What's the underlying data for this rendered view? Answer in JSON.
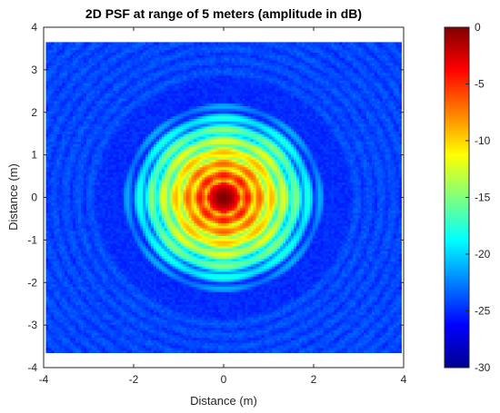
{
  "chart_data": {
    "type": "heatmap",
    "title": "2D PSF at range of 5 meters (amplitude in dB)",
    "xlabel": "Distance (m)",
    "ylabel": "Distance (m)",
    "xlim": [
      -4,
      4
    ],
    "ylim": [
      -4,
      4
    ],
    "data_extent": {
      "x": [
        -3.95,
        3.95
      ],
      "y": [
        -3.65,
        3.65
      ]
    },
    "x_ticks": [
      -4,
      -2,
      0,
      2,
      4
    ],
    "x_tick_labels": [
      "-4",
      "-2",
      "0",
      "2",
      "4"
    ],
    "y_ticks": [
      -4,
      -3,
      -2,
      -1,
      0,
      1,
      2,
      3,
      4
    ],
    "y_tick_labels": [
      "-4",
      "-3",
      "-2",
      "-1",
      "0",
      "1",
      "2",
      "3",
      "4"
    ],
    "colorbar": {
      "range": [
        -30,
        0
      ],
      "ticks": [
        0,
        -5,
        -10,
        -15,
        -20,
        -25,
        -30
      ],
      "tick_labels": [
        "0",
        "-5",
        "-10",
        "-15",
        "-20",
        "-25",
        "-30"
      ],
      "colormap": "jet"
    },
    "peak": {
      "x": 0,
      "y": 0,
      "value_db": 0
    },
    "background_level_db": -25,
    "grid": false,
    "legend": "none"
  },
  "colors": {
    "axis": "#262626",
    "background": "#ffffff"
  }
}
